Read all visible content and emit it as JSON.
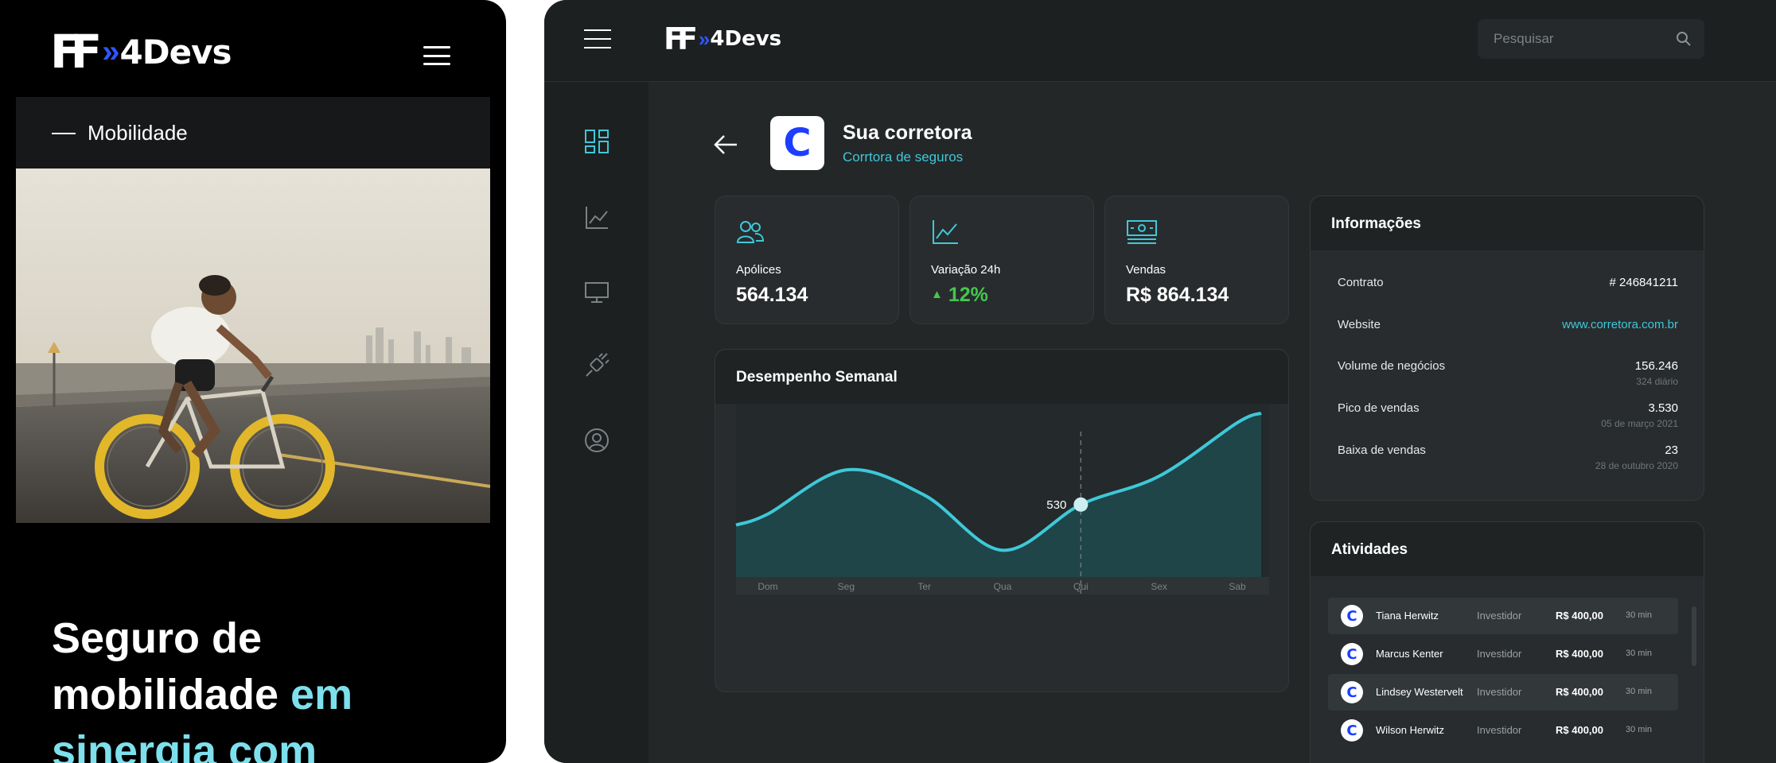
{
  "mobile": {
    "brand": {
      "mark": "FF",
      "name": "4Devs"
    },
    "category": "Mobilidade",
    "headline": {
      "line1": "Seguro de",
      "line2": "mobilidade",
      "highlight1": "em",
      "line3": "sinergia com"
    }
  },
  "desktop": {
    "brand": {
      "mark": "FF",
      "name": "4Devs"
    },
    "search": {
      "placeholder": "Pesquisar"
    },
    "company": {
      "initial": "C",
      "name": "Sua corretora",
      "subtitle": "Corrtora de seguros"
    },
    "stats": [
      {
        "label": "Apólices",
        "value": "564.134",
        "icon": "users-icon"
      },
      {
        "label": "Variação 24h",
        "value": "12%",
        "icon": "line-chart-icon",
        "trend": "up"
      },
      {
        "label": "Vendas",
        "value": "R$ 864.134",
        "icon": "cash-icon"
      }
    ],
    "info": {
      "title": "Informações",
      "rows": [
        {
          "key": "Contrato",
          "value": "# 246841211"
        },
        {
          "key": "Website",
          "value": "www.corretora.com.br"
        },
        {
          "key": "Volume de negócios",
          "value": "156.246",
          "sub": "324 diário"
        },
        {
          "key": "Pico de vendas",
          "value": "3.530",
          "sub": "05 de março 2021"
        },
        {
          "key": "Baixa de vendas",
          "value": "23",
          "sub": "28 de outubro 2020"
        }
      ]
    },
    "activities": {
      "title": "Atividades",
      "rows": [
        {
          "name": "Tiana Herwitz",
          "role": "Investidor",
          "amount": "R$ 400,00",
          "time": "30 min"
        },
        {
          "name": "Marcus Kenter",
          "role": "Investidor",
          "amount": "R$ 400,00",
          "time": "30 min"
        },
        {
          "name": "Lindsey Westervelt",
          "role": "Investidor",
          "amount": "R$ 400,00",
          "time": "30 min"
        },
        {
          "name": "Wilson Herwitz",
          "role": "Investidor",
          "amount": "R$ 400,00",
          "time": "30 min"
        }
      ]
    },
    "sidebar": {
      "icons": [
        "dashboard-icon",
        "chart-icon",
        "monitor-icon",
        "plug-icon",
        "user-circle-icon"
      ]
    }
  },
  "colors": {
    "accent": "#3fc8d8",
    "brand_blue": "#2f56ff",
    "positive": "#46c64e"
  },
  "chart_data": {
    "type": "area",
    "title": "Desempenho Semanal",
    "categories": [
      "Dom",
      "Seg",
      "Ter",
      "Qua",
      "Qui",
      "Sex",
      "Sab"
    ],
    "values": [
      500,
      640,
      560,
      385,
      530,
      620,
      790
    ],
    "highlight": {
      "category": "Qui",
      "label": "530"
    },
    "ylim": [
      300,
      850
    ],
    "grid": false,
    "color": "#3fc8d8"
  }
}
